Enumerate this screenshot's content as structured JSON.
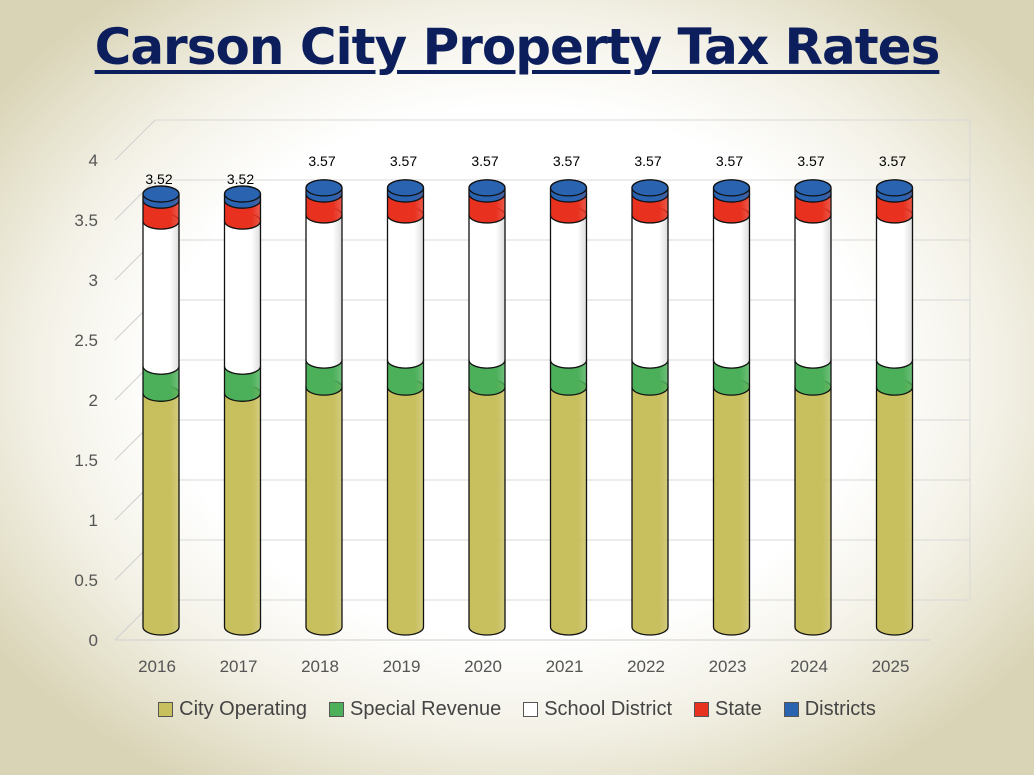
{
  "chart_data": {
    "type": "bar",
    "stacked": true,
    "style": "3d-cylinder",
    "title": "Carson City Property Tax Rates",
    "categories": [
      "2016",
      "2017",
      "2018",
      "2019",
      "2020",
      "2021",
      "2022",
      "2023",
      "2024",
      "2025"
    ],
    "series": [
      {
        "name": "City Operating",
        "color": "#c8bf5e",
        "values": [
          1.9,
          1.9,
          1.95,
          1.95,
          1.95,
          1.95,
          1.95,
          1.95,
          1.95,
          1.95
        ]
      },
      {
        "name": "Special Revenue",
        "color": "#4caf5a",
        "values": [
          0.22,
          0.22,
          0.22,
          0.22,
          0.22,
          0.22,
          0.22,
          0.22,
          0.22,
          0.22
        ]
      },
      {
        "name": "School District",
        "color": "#ffffff",
        "values": [
          1.18,
          1.18,
          1.18,
          1.18,
          1.18,
          1.18,
          1.18,
          1.18,
          1.18,
          1.18
        ]
      },
      {
        "name": "State",
        "color": "#e8311f",
        "values": [
          0.17,
          0.17,
          0.17,
          0.17,
          0.17,
          0.17,
          0.17,
          0.17,
          0.17,
          0.17
        ]
      },
      {
        "name": "Districts",
        "color": "#2a63b0",
        "values": [
          0.05,
          0.05,
          0.05,
          0.05,
          0.05,
          0.05,
          0.05,
          0.05,
          0.05,
          0.05
        ]
      }
    ],
    "totals_labels": [
      "3.52",
      "3.52",
      "3.57",
      "3.57",
      "3.57",
      "3.57",
      "3.57",
      "3.57",
      "3.57",
      "3.57"
    ],
    "yticks": [
      "0",
      "0.5",
      "1",
      "1.5",
      "2",
      "2.5",
      "3",
      "3.5",
      "4"
    ],
    "ylim": [
      0,
      4
    ],
    "grid": true,
    "legend": "bottom"
  }
}
